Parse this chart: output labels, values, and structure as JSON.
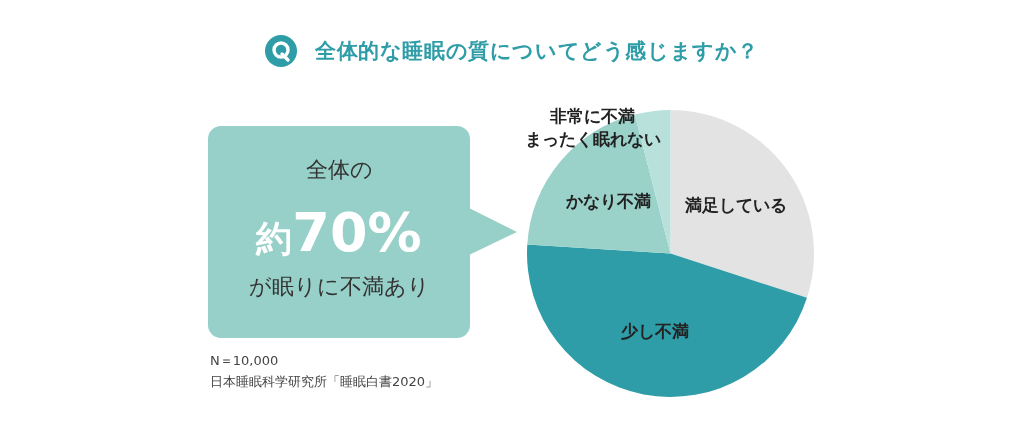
{
  "chart_data": {
    "type": "pie",
    "title": "全体的な睡眠の質についてどう感じますか？",
    "categories": [
      "満足している",
      "少し不満",
      "かなり不満",
      "非常に不満まったく眠れない"
    ],
    "values": [
      30,
      46,
      20,
      4
    ],
    "colors": [
      "#e3e3e3",
      "#2e9da8",
      "#9ad2ca",
      "#b9e1dc"
    ],
    "annotations": [
      "全体の",
      "約70%",
      "が眠りに不満あり",
      "N＝10,000",
      "日本睡眠科学研究所「睡眠白書2020」"
    ]
  }
}
